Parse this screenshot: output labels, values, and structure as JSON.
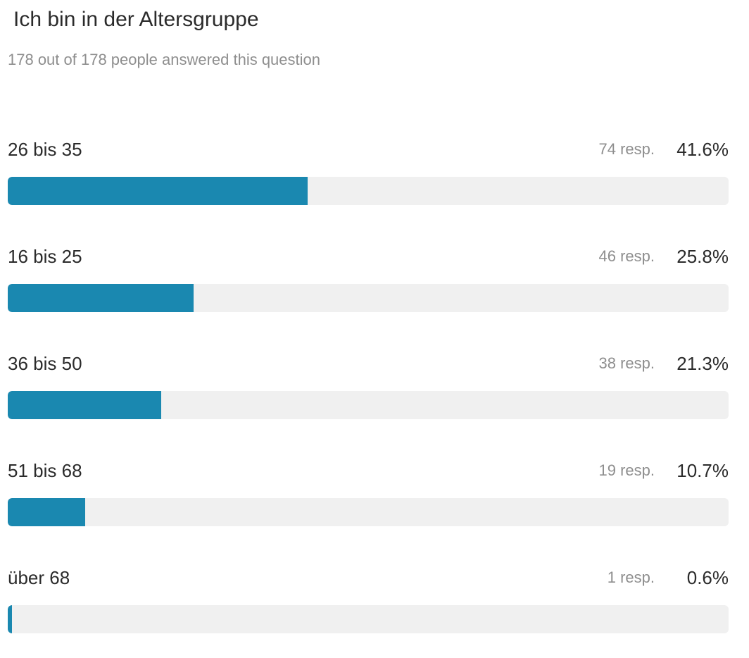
{
  "header": {
    "title": "Ich bin in der Altersgruppe",
    "subtitle": "178 out of 178 people answered this question"
  },
  "colors": {
    "bar_fill": "#1a88b0",
    "bar_track": "#f0f0f0",
    "text_primary": "#2b2b2b",
    "text_secondary": "#8e8e8e"
  },
  "chart_data": {
    "type": "bar",
    "orientation": "horizontal",
    "title": "Ich bin in der Altersgruppe",
    "total": 178,
    "answered": 178,
    "categories": [
      "26 bis 35",
      "16 bis 25",
      "36 bis 50",
      "51 bis 68",
      "über 68"
    ],
    "counts": [
      74,
      46,
      38,
      19,
      1
    ],
    "percentages": [
      41.6,
      25.8,
      21.3,
      10.7,
      0.6
    ],
    "count_labels": [
      "74 resp.",
      "46 resp.",
      "38 resp.",
      "19 resp.",
      "1 resp."
    ],
    "percent_labels": [
      "41.6%",
      "25.8%",
      "21.3%",
      "10.7%",
      "0.6%"
    ],
    "xlim": [
      0,
      100
    ]
  }
}
